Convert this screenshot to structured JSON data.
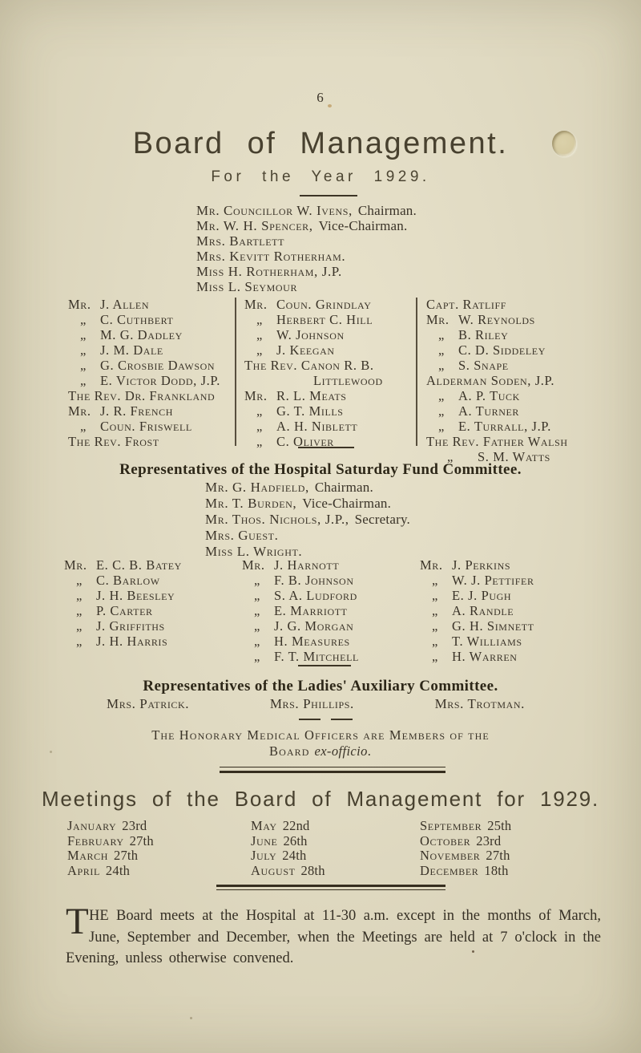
{
  "page": {
    "number": "6"
  },
  "colors": {
    "paper": "#e0dac2",
    "ink": "#3a3328"
  },
  "header": {
    "title": "Board of Management.",
    "subtitle": "For the Year 1929."
  },
  "board": {
    "officers": [
      {
        "n": "Mr. Councillor W. Ivens,",
        "r": "Chairman."
      },
      {
        "n": "Mr. W. H. Spencer,",
        "r": "Vice-Chairman."
      },
      {
        "n": "Mrs. Bartlett",
        "r": ""
      },
      {
        "n": "Mrs. Kevitt Rotherham.",
        "r": ""
      },
      {
        "n": "Miss H. Rotherham, J.P.",
        "r": ""
      },
      {
        "n": "Miss L. Seymour",
        "r": ""
      }
    ],
    "col1": [
      {
        "p": "Mr.",
        "n": "J. Allen"
      },
      {
        "p": "„",
        "n": "C. Cuthbert"
      },
      {
        "p": "„",
        "n": "M. G. Dadley"
      },
      {
        "p": "„",
        "n": "J. M. Dale"
      },
      {
        "p": "„",
        "n": "G. Crosbie Dawson"
      },
      {
        "p": "„",
        "n": "E. Victor Dodd, J.P."
      },
      {
        "p": "",
        "n": "The Rev. Dr. Frankland"
      },
      {
        "p": "Mr.",
        "n": "J. R. French"
      },
      {
        "p": "„",
        "n": "Coun. Friswell"
      },
      {
        "p": "",
        "n": "The Rev. Frost"
      }
    ],
    "col2": [
      {
        "p": "Mr.",
        "n": "Coun. Grindlay"
      },
      {
        "p": "„",
        "n": "Herbert C. Hill"
      },
      {
        "p": "„",
        "n": "W. Johnson"
      },
      {
        "p": "„",
        "n": "J. Keegan"
      },
      {
        "p": "",
        "n": "The Rev. Canon R. B."
      },
      {
        "p": "",
        "n": "Littlewood",
        "cls": "indent"
      },
      {
        "p": "Mr.",
        "n": "R. L. Meats"
      },
      {
        "p": "„",
        "n": "G. T. Mills"
      },
      {
        "p": "„",
        "n": "A. H. Niblett"
      },
      {
        "p": "„",
        "n": "C. Oliver"
      }
    ],
    "col3": [
      {
        "p": "",
        "n": "Capt. Ratliff"
      },
      {
        "p": "Mr.",
        "n": "W. Reynolds"
      },
      {
        "p": "„",
        "n": "B. Riley"
      },
      {
        "p": "„",
        "n": "C. D. Siddeley"
      },
      {
        "p": "„",
        "n": "S. Snape"
      },
      {
        "p": "",
        "n": "Alderman Soden, J.P."
      },
      {
        "p": "„",
        "n": "A. P. Tuck"
      },
      {
        "p": "„",
        "n": "A. Turner"
      },
      {
        "p": "„",
        "n": "E. Turrall, J.P."
      },
      {
        "p": "",
        "n": "The Rev. Father Walsh"
      },
      {
        "p": "„",
        "n": "S. M. Watts",
        "cls": "watts"
      }
    ]
  },
  "hsf": {
    "heading": "Representatives of the Hospital Saturday Fund Committee.",
    "officers": [
      {
        "n": "Mr. G. Hadfield,",
        "r": "Chairman."
      },
      {
        "n": "Mr. T. Burden,",
        "r": "Vice-Chairman."
      },
      {
        "n": "Mr. Thos. Nichols, J.P.,",
        "r": "Secretary."
      },
      {
        "n": "Mrs. Guest.",
        "r": ""
      },
      {
        "n": "Miss L. Wright.",
        "r": ""
      }
    ],
    "col1": [
      {
        "p": "Mr.",
        "n": "E. C. B. Batey"
      },
      {
        "p": "„",
        "n": "C. Barlow"
      },
      {
        "p": "„",
        "n": "J. H. Beesley"
      },
      {
        "p": "„",
        "n": "P. Carter"
      },
      {
        "p": "„",
        "n": "J. Griffiths"
      },
      {
        "p": "„",
        "n": "J. H. Harris"
      }
    ],
    "col2": [
      {
        "p": "Mr.",
        "n": "J. Harnott"
      },
      {
        "p": "„",
        "n": "F. B. Johnson"
      },
      {
        "p": "„",
        "n": "S. A. Ludford"
      },
      {
        "p": "„",
        "n": "E. Marriott"
      },
      {
        "p": "„",
        "n": "J. G. Morgan"
      },
      {
        "p": "„",
        "n": "H. Measures"
      },
      {
        "p": "„",
        "n": "F. T. Mitchell"
      }
    ],
    "col3": [
      {
        "p": "Mr.",
        "n": "J. Perkins"
      },
      {
        "p": "„",
        "n": "W. J. Pettifer"
      },
      {
        "p": "„",
        "n": "E. J. Pugh"
      },
      {
        "p": "„",
        "n": "A. Randle"
      },
      {
        "p": "„",
        "n": "G. H. Simnett"
      },
      {
        "p": "„",
        "n": "T. Williams"
      },
      {
        "p": "„",
        "n": "H. Warren"
      }
    ]
  },
  "ladies": {
    "heading": "Representatives of the Ladies' Auxiliary Committee.",
    "members": [
      "Mrs. Patrick.",
      "Mrs. Phillips.",
      "Mrs. Trotman."
    ]
  },
  "ex_officio": {
    "line1": "The Honorary Medical Officers are Members of the",
    "line2_pre": "Board",
    "line2_italic": "ex-officio",
    "line2_post": "."
  },
  "meetings": {
    "title": "Meetings of the Board of Management for 1929.",
    "col1": [
      {
        "m": "January",
        "d": "23rd"
      },
      {
        "m": "February",
        "d": "27th"
      },
      {
        "m": "March",
        "d": "27th"
      },
      {
        "m": "April",
        "d": "24th"
      }
    ],
    "col2": [
      {
        "m": "May",
        "d": "22nd"
      },
      {
        "m": "June",
        "d": "26th"
      },
      {
        "m": "July",
        "d": "24th"
      },
      {
        "m": "August",
        "d": "28th"
      }
    ],
    "col3": [
      {
        "m": "September",
        "d": "25th"
      },
      {
        "m": "October",
        "d": "23rd"
      },
      {
        "m": "November",
        "d": "27th"
      },
      {
        "m": "December",
        "d": "18th"
      }
    ]
  },
  "footer": {
    "dropcap": "T",
    "text": "HE Board meets at the Hospital at 11-30 a.m. except in the months of March, June, September and December, when the Meetings are held at 7 o'clock in the Evening, unless otherwise convened."
  }
}
